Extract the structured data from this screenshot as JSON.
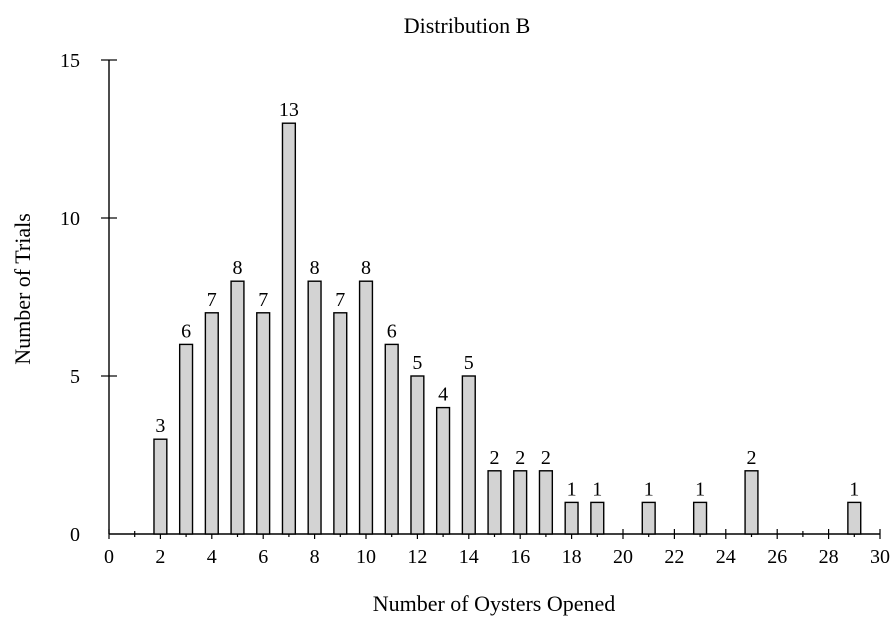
{
  "chart_data": {
    "type": "bar",
    "title": "Distribution B",
    "xlabel": "Number of Oysters Opened",
    "ylabel": "Number of Trials",
    "x": [
      2,
      3,
      4,
      5,
      6,
      7,
      8,
      9,
      10,
      11,
      12,
      13,
      14,
      15,
      16,
      17,
      18,
      19,
      21,
      23,
      25,
      29
    ],
    "values": [
      3,
      6,
      7,
      8,
      7,
      13,
      8,
      7,
      8,
      6,
      5,
      4,
      5,
      2,
      2,
      2,
      1,
      1,
      1,
      1,
      2,
      1
    ],
    "data_labels": [
      "3",
      "6",
      "7",
      "8",
      "7",
      "13",
      "8",
      "7",
      "8",
      "6",
      "5",
      "4",
      "5",
      "2",
      "2",
      "2",
      "1",
      "1",
      "1",
      "1",
      "2",
      "1"
    ],
    "xlim": [
      0,
      30
    ],
    "ylim": [
      0,
      15
    ],
    "x_ticks": [
      0,
      2,
      4,
      6,
      8,
      10,
      12,
      14,
      16,
      18,
      20,
      22,
      24,
      26,
      28,
      30
    ],
    "x_tick_labels": [
      "0",
      "2",
      "4",
      "6",
      "8",
      "10",
      "12",
      "14",
      "16",
      "18",
      "20",
      "22",
      "24",
      "26",
      "28",
      "30"
    ],
    "y_ticks": [
      0,
      5,
      10,
      15
    ],
    "y_tick_labels": [
      "0",
      "5",
      "10",
      "15"
    ],
    "minor_x_ticks": true,
    "grid": false,
    "legend": "none",
    "colors": {
      "bar_fill": "#d3d3d3",
      "bar_stroke": "#000000"
    }
  }
}
